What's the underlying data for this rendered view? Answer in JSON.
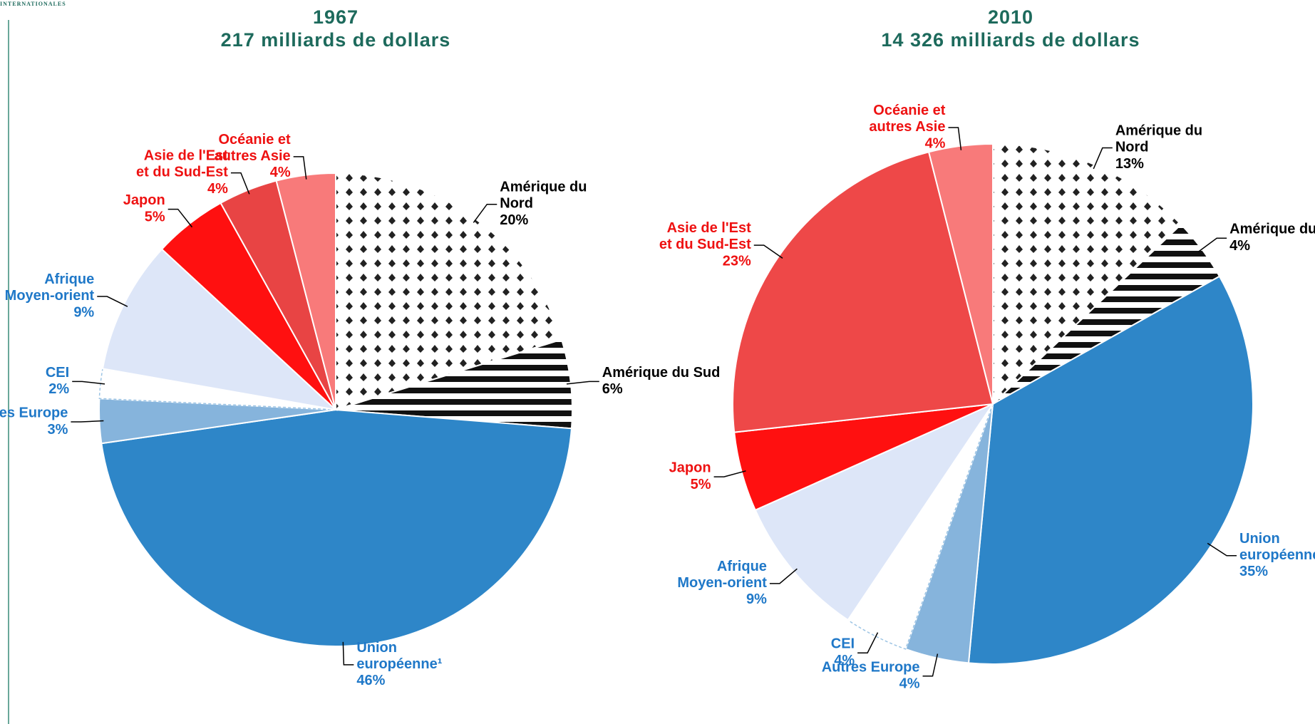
{
  "header": "INTERNATIONALES",
  "chart_data": [
    {
      "type": "pie",
      "title": "1967",
      "subtitle": "217 milliards de dollars",
      "categories": [
        "Amérique du Nord",
        "Amérique du Sud",
        "Union européenne¹",
        "Autres Europe",
        "CEI",
        "Afrique Moyen-orient",
        "Japon",
        "Asie de l'Est et du Sud-Est",
        "Océanie et autres Asie"
      ],
      "values": [
        20,
        6,
        46,
        3,
        2,
        9,
        5,
        4,
        4
      ],
      "value_labels": [
        "20%",
        "6%",
        "46%",
        "3%",
        "2%",
        "9%",
        "5%",
        "4%",
        "4%"
      ],
      "colors": [
        "dots",
        "stripes",
        "#2e86c8",
        "#86b4dc",
        "#ffffff",
        "#dde6f8",
        "#ff1010",
        "#e84444",
        "#f87a7a"
      ],
      "label_colors": [
        "#000000",
        "#000000",
        "#1f78c8",
        "#1f78c8",
        "#1f78c8",
        "#1f78c8",
        "#ee1111",
        "#ee1111",
        "#ee1111"
      ]
    },
    {
      "type": "pie",
      "title": "2010",
      "subtitle": "14 326 milliards de dollars",
      "categories": [
        "Amérique du Nord",
        "Amérique du Sud",
        "Union européenne",
        "Autres Europe",
        "CEI",
        "Afrique Moyen-orient",
        "Japon",
        "Asie de l'Est et du Sud-Est",
        "Océanie et autres Asie"
      ],
      "values": [
        13,
        4,
        35,
        4,
        4,
        9,
        5,
        23,
        4
      ],
      "value_labels": [
        "13%",
        "4%",
        "35%",
        "4%",
        "4%",
        "9%",
        "5%",
        "23%",
        "4%"
      ],
      "colors": [
        "dots",
        "stripes",
        "#2e86c8",
        "#86b4dc",
        "#ffffff",
        "#dde6f8",
        "#ff1010",
        "#ee4848",
        "#f87a7a"
      ],
      "label_colors": [
        "#000000",
        "#000000",
        "#1f78c8",
        "#1f78c8",
        "#1f78c8",
        "#1f78c8",
        "#ee1111",
        "#ee1111",
        "#ee1111"
      ]
    }
  ]
}
